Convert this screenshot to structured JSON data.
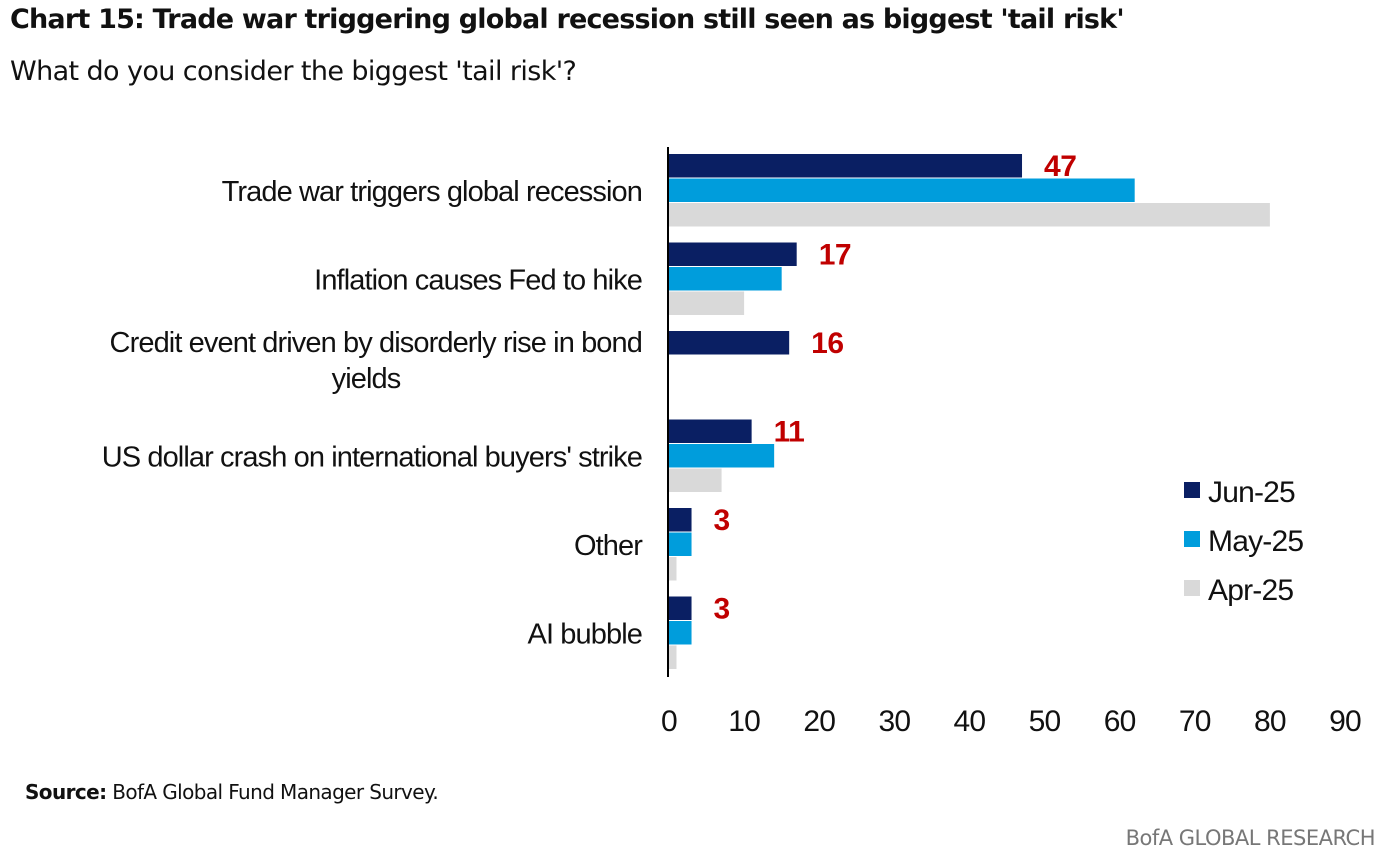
{
  "header": {
    "title": "Chart 15: Trade war triggering global recession still seen as biggest 'tail risk'",
    "subtitle": "What do you consider the biggest 'tail risk'?"
  },
  "footer": {
    "source_label": "Source:",
    "source_text": "BofA Global Fund Manager Survey.",
    "brand": "BofA GLOBAL RESEARCH"
  },
  "colors": {
    "jun": "#0a1f63",
    "may": "#009ddc",
    "apr": "#d9d9d9",
    "label": "#c00000",
    "text": "#111111",
    "axis": "#000000"
  },
  "chart_data": {
    "type": "bar",
    "orientation": "horizontal",
    "title": "Chart 15: Trade war triggering global recession still seen as biggest 'tail risk'",
    "subtitle": "What do you consider the biggest 'tail risk'?",
    "categories": [
      [
        "Trade war triggers global recession"
      ],
      [
        "Inflation causes Fed to hike"
      ],
      [
        "Credit event driven by disorderly rise in bond",
        "yields"
      ],
      [
        "US dollar crash on international buyers' strike"
      ],
      [
        "Other"
      ],
      [
        "AI bubble"
      ]
    ],
    "series": [
      {
        "name": "Jun-25",
        "values": [
          47,
          17,
          16,
          11,
          3,
          3
        ]
      },
      {
        "name": "May-25",
        "values": [
          62,
          15,
          0,
          14,
          3,
          3
        ]
      },
      {
        "name": "Apr-25",
        "values": [
          80,
          10,
          0,
          7,
          1,
          1
        ]
      }
    ],
    "data_labels": [
      "47",
      "17",
      "16",
      "11",
      "3",
      "3"
    ],
    "xlim": [
      0,
      90
    ],
    "xticks": [
      "0",
      "10",
      "20",
      "30",
      "40",
      "50",
      "60",
      "70",
      "80",
      "90"
    ],
    "legend_position": "right",
    "grid": false
  }
}
